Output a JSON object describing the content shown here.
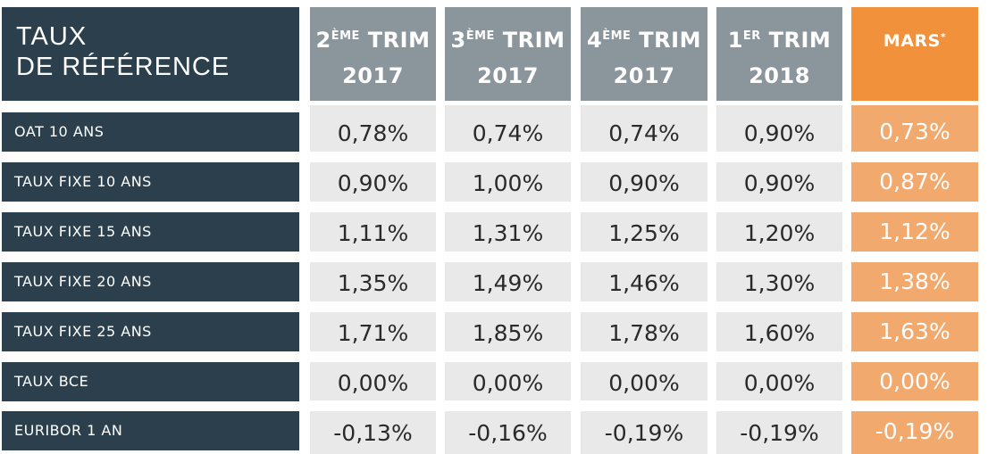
{
  "header": {
    "title_line1": "TAUX",
    "title_line2": "DE RÉFÉRENCE"
  },
  "columns": [
    {
      "num": "2",
      "sup": "ÈME",
      "word": "TRIM",
      "year": "2017"
    },
    {
      "num": "3",
      "sup": "ÈME",
      "word": "TRIM",
      "year": "2017"
    },
    {
      "num": "4",
      "sup": "ÈME",
      "word": "TRIM",
      "year": "2017"
    },
    {
      "num": "1",
      "sup": "ER",
      "word": "TRIM",
      "year": "2018"
    }
  ],
  "highlight_column": {
    "label": "MARS",
    "sup": "*"
  },
  "rows": [
    {
      "label": "OAT 10 ANS",
      "values": [
        "0,78%",
        "0,74%",
        "0,74%",
        "0,90%",
        "0,73%"
      ]
    },
    {
      "label": "TAUX FIXE 10 ANS",
      "values": [
        "0,90%",
        "1,00%",
        "0,90%",
        "0,90%",
        "0,87%"
      ]
    },
    {
      "label": "TAUX FIXE 15 ANS",
      "values": [
        "1,11%",
        "1,31%",
        "1,25%",
        "1,20%",
        "1,12%"
      ]
    },
    {
      "label": "TAUX FIXE 20 ANS",
      "values": [
        "1,35%",
        "1,49%",
        "1,46%",
        "1,30%",
        "1,38%"
      ]
    },
    {
      "label": "TAUX FIXE 25 ANS",
      "values": [
        "1,71%",
        "1,85%",
        "1,78%",
        "1,60%",
        "1,63%"
      ]
    },
    {
      "label": "TAUX BCE",
      "values": [
        "0,00%",
        "0,00%",
        "0,00%",
        "0,00%",
        "0,00%"
      ]
    },
    {
      "label": "EURIBOR 1 AN",
      "values": [
        "-0,13%",
        "-0,16%",
        "-0,19%",
        "-0,19%",
        "-0,19%"
      ]
    }
  ],
  "colors": {
    "dark": "#2b3f4c",
    "grey_header": "#8a959c",
    "grey_cell": "#e9e9ea",
    "orange_header": "#f2913c",
    "orange_cell": "#f2a96e"
  }
}
